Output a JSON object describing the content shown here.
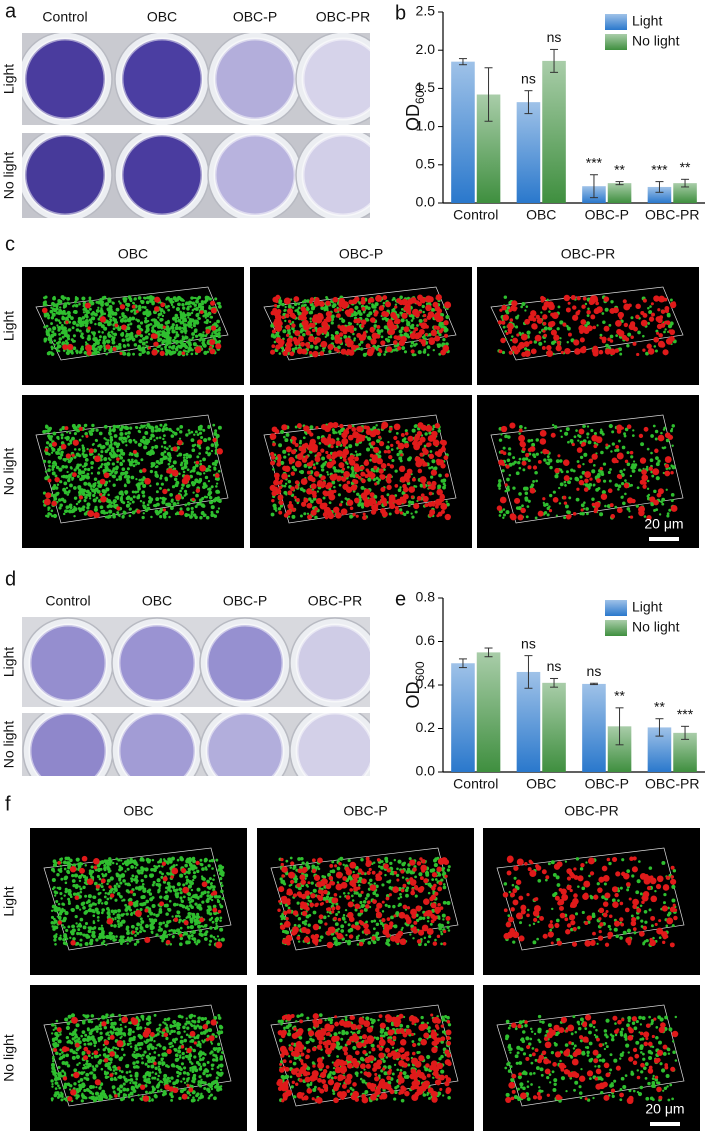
{
  "figure": {
    "panel_a": {
      "label": "a",
      "columns": [
        "Control",
        "OBC",
        "OBC-P",
        "OBC-PR"
      ],
      "rows": [
        "Light",
        "No light"
      ]
    },
    "panel_c": {
      "label": "c",
      "columns": [
        "OBC",
        "OBC-P",
        "OBC-PR"
      ],
      "rows": [
        "Light",
        "No light"
      ],
      "scale_bar": "20 μm"
    },
    "panel_d": {
      "label": "d",
      "columns": [
        "Control",
        "OBC",
        "OBC-P",
        "OBC-PR"
      ],
      "rows": [
        "Light",
        "No light"
      ]
    },
    "panel_f": {
      "label": "f",
      "columns": [
        "OBC",
        "OBC-P",
        "OBC-PR"
      ],
      "rows": [
        "Light",
        "No light"
      ],
      "scale_bar": "20 μm"
    }
  },
  "chart_data": [
    {
      "type": "bar",
      "panel_label": "b",
      "ylabel": {
        "text": "OD",
        "subscript": "600"
      },
      "categories": [
        "Control",
        "OBC",
        "OBC-P",
        "OBC-PR"
      ],
      "series": [
        {
          "name": "Light",
          "color": "#2a78cc",
          "values": [
            1.85,
            1.32,
            0.22,
            0.21
          ],
          "errors": [
            0.04,
            0.15,
            0.15,
            0.07
          ],
          "annotations": [
            null,
            "ns",
            "***",
            "***"
          ]
        },
        {
          "name": "No light",
          "color": "#3f8f3f",
          "values": [
            1.42,
            1.86,
            0.26,
            0.26
          ],
          "errors": [
            0.35,
            0.15,
            0.02,
            0.05
          ],
          "annotations": [
            null,
            "ns",
            "**",
            "**"
          ]
        }
      ],
      "ylim": [
        0,
        2.5
      ],
      "yticks": [
        {
          "value": 0,
          "label": "0.0"
        },
        {
          "value": 0.5,
          "label": "0.5"
        },
        {
          "value": 1,
          "label": "1.0"
        },
        {
          "value": 1.5,
          "label": "1.5"
        },
        {
          "value": 2,
          "label": "2.0"
        },
        {
          "value": 2.5,
          "label": "2.5"
        }
      ],
      "legend": "upper right"
    },
    {
      "type": "bar",
      "panel_label": "e",
      "ylabel": {
        "text": "OD",
        "subscript": "600"
      },
      "categories": [
        "Control",
        "OBC",
        "OBC-P",
        "OBC-PR"
      ],
      "series": [
        {
          "name": "Light",
          "color": "#2a78cc",
          "values": [
            0.5,
            0.46,
            0.405,
            0.205
          ],
          "errors": [
            0.02,
            0.075,
            0.003,
            0.04
          ],
          "annotations": [
            null,
            "ns",
            "ns",
            "**"
          ]
        },
        {
          "name": "No light",
          "color": "#3f8f3f",
          "values": [
            0.55,
            0.41,
            0.21,
            0.18
          ],
          "errors": [
            0.02,
            0.02,
            0.085,
            0.03
          ],
          "annotations": [
            null,
            "ns",
            "**",
            "***"
          ]
        }
      ],
      "ylim": [
        0,
        0.8
      ],
      "yticks": [
        {
          "value": 0,
          "label": "0.0"
        },
        {
          "value": 0.2,
          "label": "0.2"
        },
        {
          "value": 0.4,
          "label": "0.4"
        },
        {
          "value": 0.6,
          "label": "0.6"
        },
        {
          "value": 0.8,
          "label": "0.8"
        }
      ],
      "legend": "upper right"
    }
  ]
}
